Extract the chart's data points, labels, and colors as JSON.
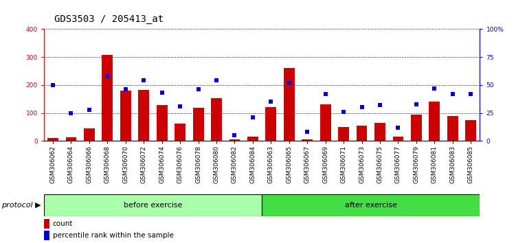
{
  "title": "GDS3503 / 205413_at",
  "categories": [
    "GSM306062",
    "GSM306064",
    "GSM306066",
    "GSM306068",
    "GSM306070",
    "GSM306072",
    "GSM306074",
    "GSM306076",
    "GSM306078",
    "GSM306080",
    "GSM306082",
    "GSM306084",
    "GSM306063",
    "GSM306065",
    "GSM306067",
    "GSM306069",
    "GSM306071",
    "GSM306073",
    "GSM306075",
    "GSM306077",
    "GSM306079",
    "GSM306081",
    "GSM306083",
    "GSM306085"
  ],
  "count_values": [
    10,
    12,
    45,
    308,
    180,
    182,
    128,
    63,
    118,
    152,
    5,
    15,
    120,
    260,
    5,
    130,
    50,
    55,
    65,
    15,
    95,
    140,
    90,
    75
  ],
  "percentile_values": [
    50,
    25,
    28,
    58,
    46,
    54,
    43,
    31,
    46,
    54,
    5,
    21,
    35,
    52,
    8,
    42,
    26,
    30,
    32,
    12,
    33,
    47,
    42,
    42
  ],
  "before_exercise_count": 12,
  "after_exercise_count": 12,
  "bar_color": "#CC0000",
  "dot_color": "#0000CC",
  "left_yaxis_color": "#CC0000",
  "right_yaxis_color": "#0000CC",
  "ylim_left": [
    0,
    400
  ],
  "ylim_right": [
    0,
    100
  ],
  "left_yticks": [
    0,
    100,
    200,
    300,
    400
  ],
  "right_yticks": [
    0,
    25,
    50,
    75,
    100
  ],
  "right_yticklabels": [
    "0",
    "25",
    "50",
    "75",
    "100%"
  ],
  "before_color": "#AAFFAA",
  "after_color": "#44DD44",
  "protocol_label": "protocol",
  "before_label": "before exercise",
  "after_label": "after exercise",
  "legend_count_label": "count",
  "legend_percentile_label": "percentile rank within the sample",
  "title_fontsize": 10,
  "tick_fontsize": 6.5,
  "label_fontsize": 8
}
